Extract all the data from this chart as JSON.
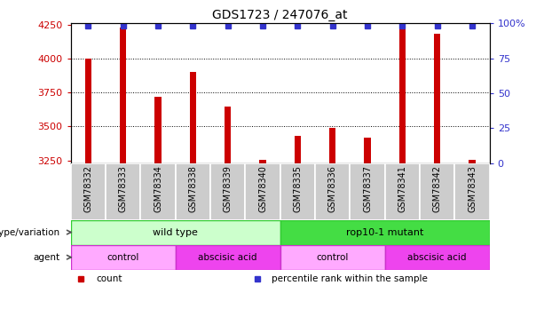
{
  "title": "GDS1723 / 247076_at",
  "samples": [
    "GSM78332",
    "GSM78333",
    "GSM78334",
    "GSM78338",
    "GSM78339",
    "GSM78340",
    "GSM78335",
    "GSM78336",
    "GSM78337",
    "GSM78341",
    "GSM78342",
    "GSM78343"
  ],
  "bar_values": [
    4000,
    4230,
    3720,
    3900,
    3650,
    3255,
    3430,
    3490,
    3420,
    4230,
    4180,
    3255
  ],
  "bar_color": "#cc0000",
  "percentile_color": "#3333cc",
  "ylim_left": [
    3230,
    4260
  ],
  "ylim_right": [
    0,
    100
  ],
  "yticks_left": [
    3250,
    3500,
    3750,
    4000,
    4250
  ],
  "yticks_right": [
    0,
    25,
    50,
    75,
    100
  ],
  "ytick_labels_right": [
    "0",
    "25",
    "50",
    "75",
    "100%"
  ],
  "grid_values": [
    4000,
    3750,
    3500
  ],
  "genotype_groups": [
    {
      "label": "wild type",
      "start": 0,
      "end": 6,
      "color": "#ccffcc",
      "border_color": "#33cc33"
    },
    {
      "label": "rop10-1 mutant",
      "start": 6,
      "end": 12,
      "color": "#44dd44",
      "border_color": "#33cc33"
    }
  ],
  "agent_groups": [
    {
      "label": "control",
      "start": 0,
      "end": 3,
      "color": "#ffaaff",
      "border_color": "#cc33cc"
    },
    {
      "label": "abscisic acid",
      "start": 3,
      "end": 6,
      "color": "#ee44ee",
      "border_color": "#cc33cc"
    },
    {
      "label": "control",
      "start": 6,
      "end": 9,
      "color": "#ffaaff",
      "border_color": "#cc33cc"
    },
    {
      "label": "abscisic acid",
      "start": 9,
      "end": 12,
      "color": "#ee44ee",
      "border_color": "#cc33cc"
    }
  ],
  "genotype_label": "genotype/variation",
  "agent_label": "agent",
  "legend_items": [
    {
      "label": "count",
      "color": "#cc0000"
    },
    {
      "label": "percentile rank within the sample",
      "color": "#3333cc"
    }
  ],
  "bg_color": "#ffffff",
  "sample_box_color": "#cccccc",
  "bar_width": 0.18
}
